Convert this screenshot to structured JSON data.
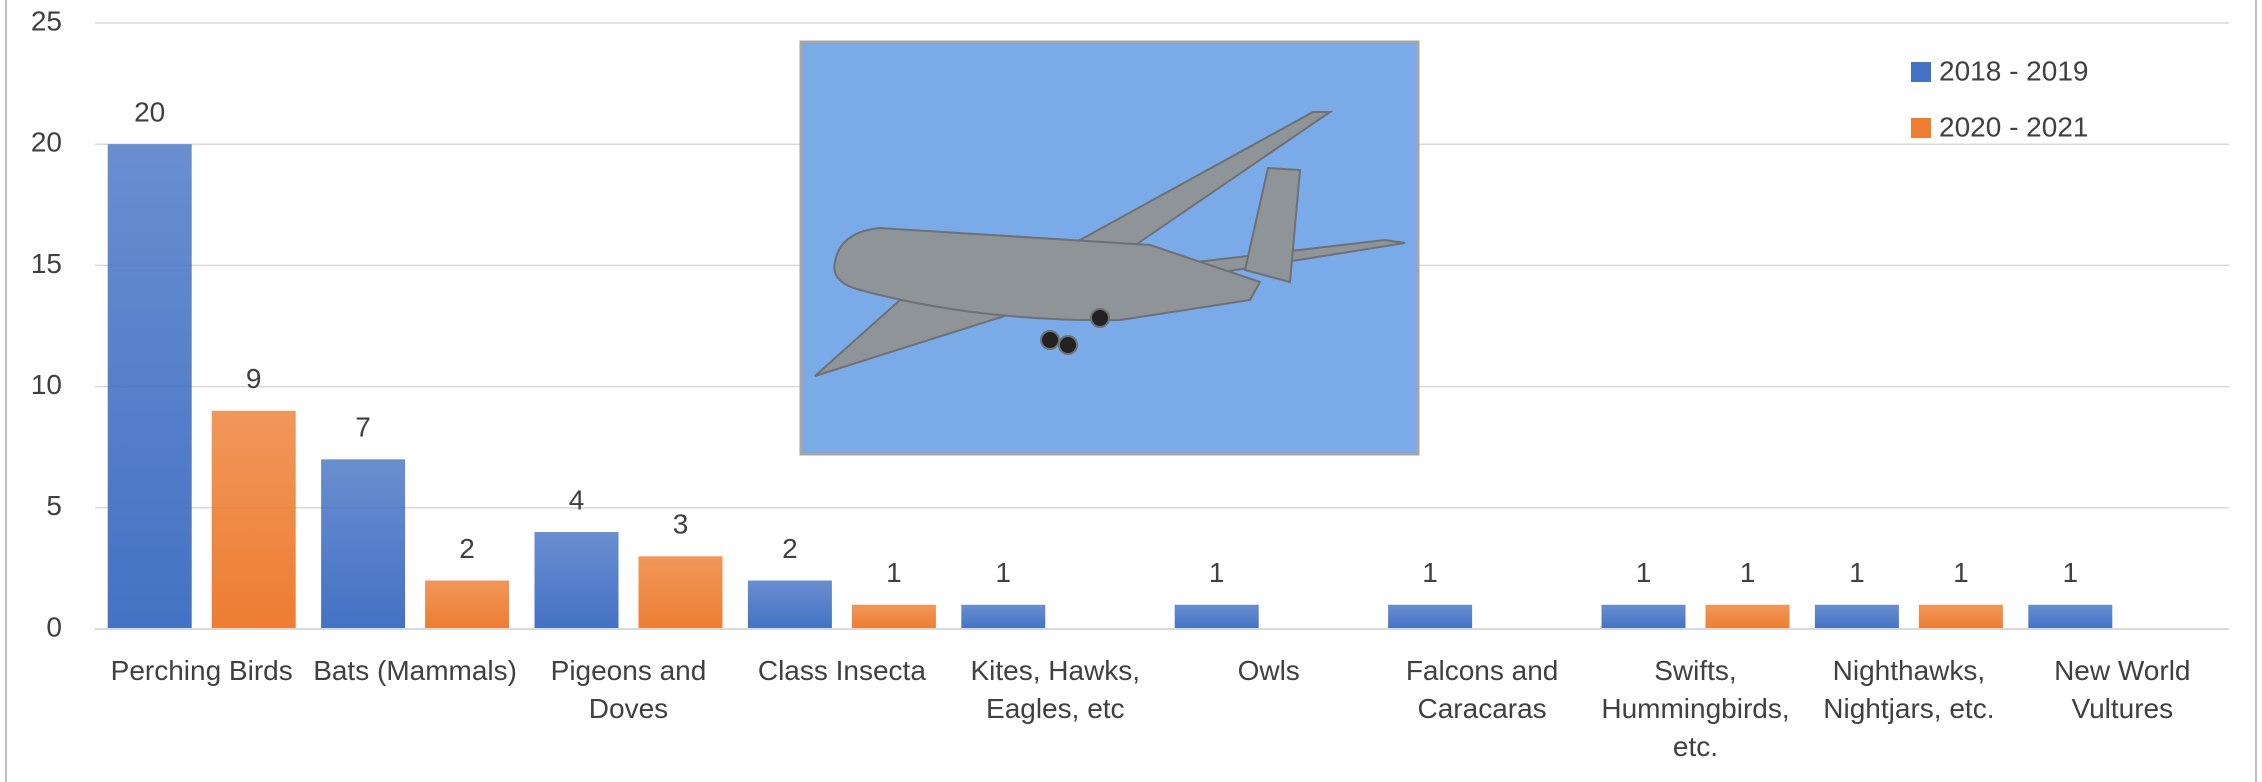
{
  "chart_data": {
    "type": "bar",
    "categories": [
      "Perching Birds",
      "Bats (Mammals)",
      "Pigeons and Doves",
      "Class Insecta",
      "Kites, Hawks, Eagles, etc",
      "Owls",
      "Falcons and Caracaras",
      "Swifts, Hummingbirds, etc.",
      "Nighthawks, Nightjars, etc.",
      "New World Vultures"
    ],
    "series": [
      {
        "name": "2018 - 2019",
        "color": "#4472c4",
        "values": [
          20,
          7,
          4,
          2,
          1,
          1,
          1,
          1,
          1,
          1
        ]
      },
      {
        "name": "2020 - 2021",
        "color": "#ed7d31",
        "values": [
          9,
          2,
          3,
          1,
          null,
          null,
          null,
          1,
          1,
          null
        ]
      }
    ],
    "ylim": [
      0,
      25
    ],
    "yticks": [
      0,
      5,
      10,
      15,
      20,
      25
    ],
    "grid": true,
    "legend": "top-right",
    "data_labels": true
  }
}
